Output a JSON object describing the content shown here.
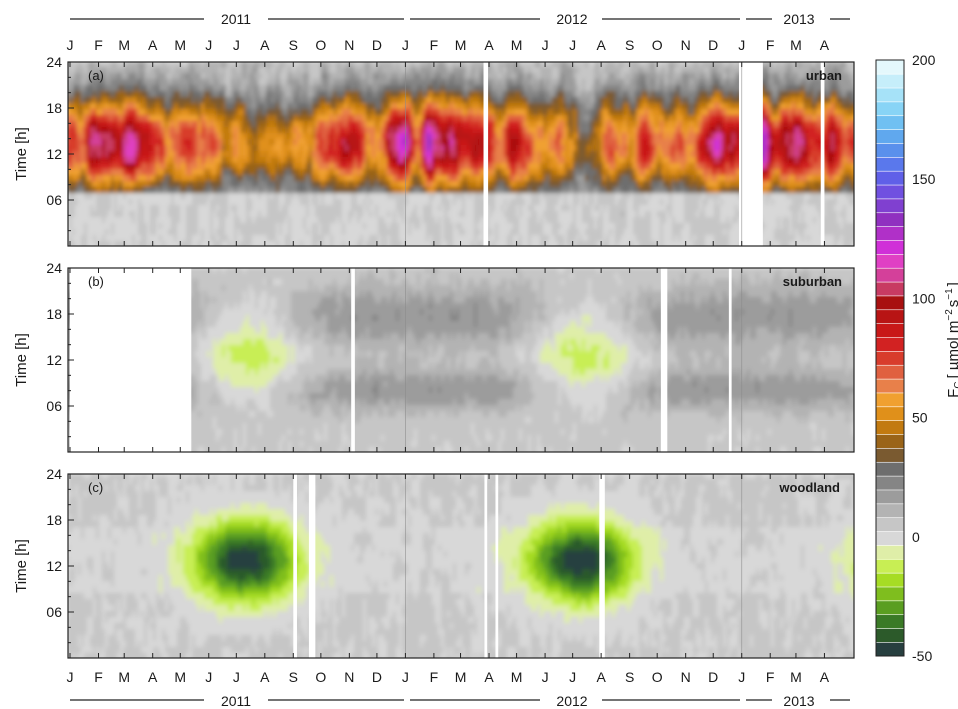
{
  "chart_data": {
    "type": "heatmap",
    "description_free": true,
    "time_axis": {
      "month_labels": [
        "J",
        "F",
        "M",
        "A",
        "M",
        "J",
        "J",
        "A",
        "S",
        "O",
        "N",
        "D",
        "J",
        "F",
        "M",
        "A",
        "M",
        "J",
        "J",
        "A",
        "S",
        "O",
        "N",
        "D",
        "J",
        "F",
        "M",
        "A"
      ],
      "year_labels": [
        "2011",
        "2012",
        "2013"
      ],
      "start": "2011-01-01",
      "end": "2013-04-30"
    },
    "ylabel": "Time [h]",
    "yticks": [
      "06",
      "12",
      "18",
      "24"
    ],
    "ylim": [
      0,
      24
    ],
    "panels": [
      {
        "tag": "(a)",
        "site": "urban",
        "gaps": [
          [
            "2012-03-26",
            "2012-03-31"
          ],
          [
            "2012-12-29",
            "2013-01-24"
          ],
          [
            "2013-03-28",
            "2013-04-01"
          ]
        ]
      },
      {
        "tag": "(b)",
        "site": "suburban",
        "gaps": [
          [
            "2011-01-01",
            "2011-05-13"
          ],
          [
            "2011-11-03",
            "2011-11-07"
          ],
          [
            "2012-10-05",
            "2012-10-12"
          ],
          [
            "2012-12-18",
            "2012-12-21"
          ]
        ]
      },
      {
        "tag": "(c)",
        "site": "woodland",
        "gaps": [
          [
            "2011-09-01",
            "2011-09-05"
          ],
          [
            "2011-09-18",
            "2011-09-25"
          ],
          [
            "2012-03-27",
            "2012-03-30"
          ],
          [
            "2012-04-08",
            "2012-04-11"
          ],
          [
            "2012-07-30",
            "2012-08-05"
          ]
        ]
      }
    ],
    "colorbar": {
      "label_main": "F",
      "label_sub": "C",
      "label_units": "[ µmol m",
      "label_exp1": "−2",
      "label_mid": "s",
      "label_exp2": "−1",
      "label_end": "]",
      "range": [
        -50,
        200
      ],
      "ticks": [
        -50,
        0,
        50,
        100,
        150,
        200
      ],
      "tick_labels": [
        "-50",
        "0",
        "50",
        "100",
        "150",
        "200"
      ],
      "colors": [
        "#273f3f",
        "#2c5a2a",
        "#3a7a26",
        "#5a9e20",
        "#7fbe1e",
        "#a6dc24",
        "#c8ee54",
        "#dfeea8",
        "#d8d8d8",
        "#c6c6c6",
        "#b3b3b3",
        "#9c9c9c",
        "#858585",
        "#6e6e6e",
        "#7a5a30",
        "#9a6418",
        "#c27a10",
        "#e0901a",
        "#f0a030",
        "#e8804a",
        "#e06040",
        "#d83c2c",
        "#d22222",
        "#c81818",
        "#b81414",
        "#a81010",
        "#c83a62",
        "#d4409a",
        "#e040c4",
        "#d030d8",
        "#b030c8",
        "#9030c0",
        "#8040d0",
        "#7050e0",
        "#6060e8",
        "#5a78ec",
        "#5a90ec",
        "#60a8ee",
        "#70c0f2",
        "#88d4f6",
        "#a6e2f8",
        "#c6eefa",
        "#e4f8fc"
      ]
    }
  }
}
